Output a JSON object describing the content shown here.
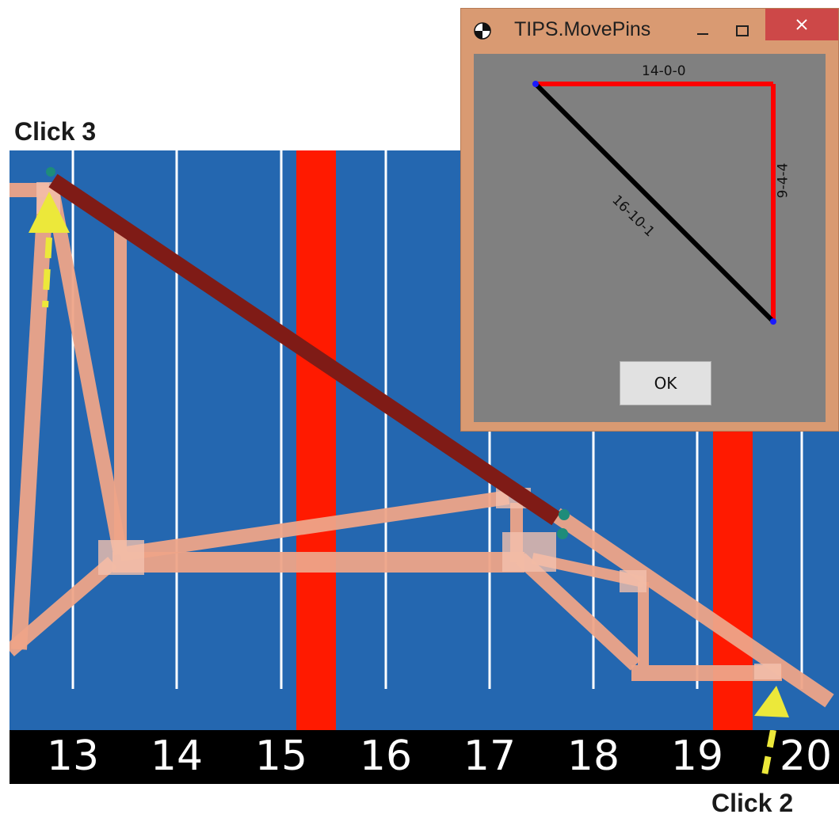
{
  "callouts": {
    "click3": "Click 3",
    "click2": "Click 2"
  },
  "ruler": {
    "ticks": [
      "13",
      "14",
      "15",
      "16",
      "17",
      "18",
      "19",
      "20"
    ]
  },
  "dialog": {
    "title": "TIPS.MovePins",
    "ok_label": "OK",
    "dimensions": {
      "top": "14-0-0",
      "right": "9-4-4",
      "diagonal": "16-10-1"
    },
    "controls": {
      "minimize": "–",
      "maximize": "☐",
      "close": "✕"
    }
  },
  "colors": {
    "canvas_bg": "#2467b0",
    "truss_member": "#eea488",
    "selected_member": "#7f1b16",
    "bearing_band": "#ff1a00",
    "gridline": "#ffffff",
    "arrow": "#ece83a",
    "pin": "#1e8c7a",
    "dialog_frame": "#d99a72",
    "dialog_client": "#808080",
    "dim_line_red": "#ff0000",
    "dim_line_black": "#000000"
  },
  "icons": {
    "app_icon": "tips-app-icon",
    "arrow": "yellow-dashed-arrow-icon"
  }
}
